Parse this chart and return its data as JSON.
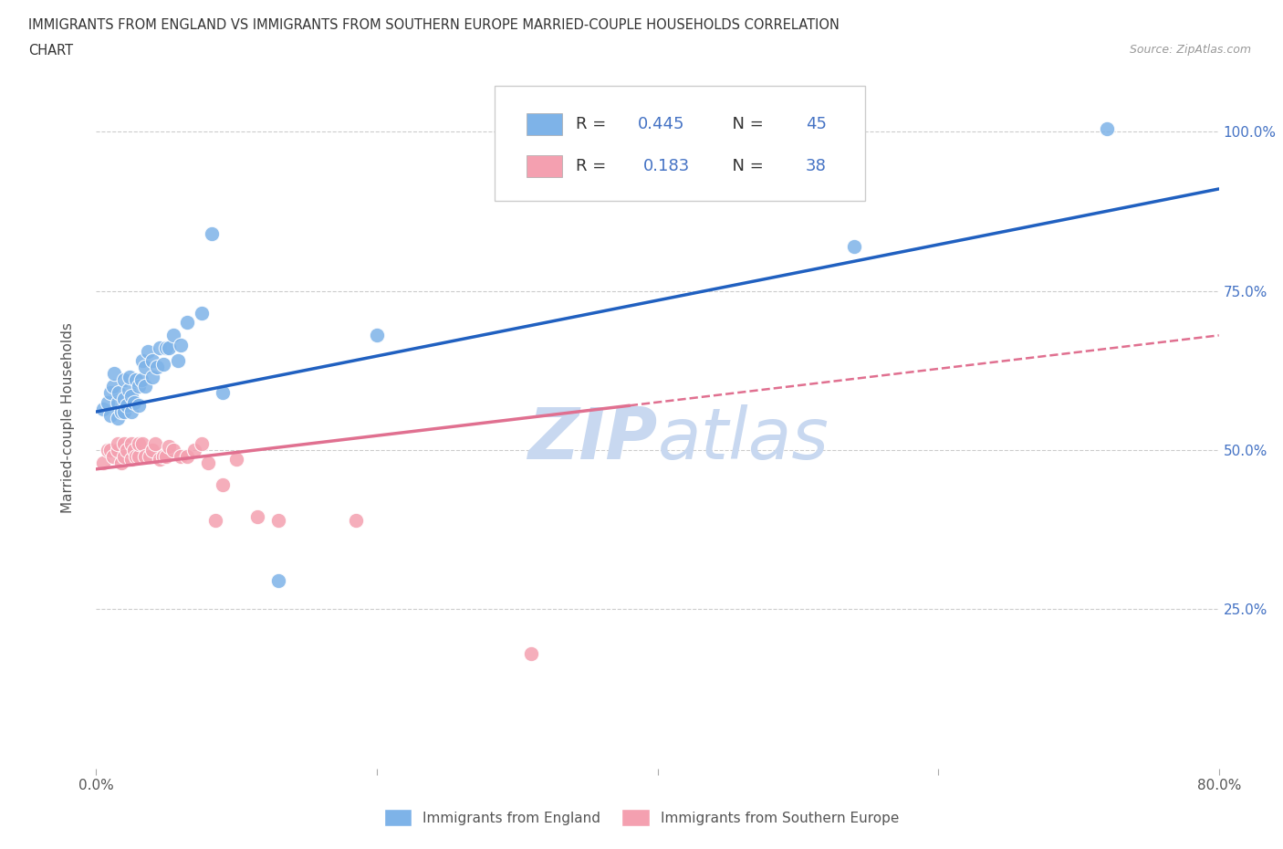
{
  "title_line1": "IMMIGRANTS FROM ENGLAND VS IMMIGRANTS FROM SOUTHERN EUROPE MARRIED-COUPLE HOUSEHOLDS CORRELATION",
  "title_line2": "CHART",
  "source_text": "Source: ZipAtlas.com",
  "ylabel": "Married-couple Households",
  "xmin": 0.0,
  "xmax": 0.8,
  "ymin": 0.0,
  "ymax": 1.1,
  "R_england": 0.445,
  "N_england": 45,
  "R_southern": 0.183,
  "N_southern": 38,
  "color_england": "#7EB3E8",
  "color_southern": "#F4A0B0",
  "trendline_england_color": "#2060C0",
  "trendline_southern_color": "#E07090",
  "legend_label_england": "Immigrants from England",
  "legend_label_southern": "Immigrants from Southern Europe",
  "england_x": [
    0.005,
    0.008,
    0.01,
    0.01,
    0.012,
    0.013,
    0.015,
    0.015,
    0.016,
    0.018,
    0.02,
    0.02,
    0.02,
    0.022,
    0.023,
    0.024,
    0.025,
    0.025,
    0.027,
    0.028,
    0.03,
    0.03,
    0.032,
    0.033,
    0.035,
    0.035,
    0.037,
    0.04,
    0.04,
    0.043,
    0.045,
    0.048,
    0.05,
    0.052,
    0.055,
    0.058,
    0.06,
    0.065,
    0.075,
    0.082,
    0.09,
    0.13,
    0.2,
    0.54,
    0.72
  ],
  "england_y": [
    0.565,
    0.575,
    0.555,
    0.59,
    0.6,
    0.62,
    0.55,
    0.575,
    0.59,
    0.56,
    0.56,
    0.58,
    0.61,
    0.57,
    0.595,
    0.615,
    0.56,
    0.585,
    0.575,
    0.61,
    0.57,
    0.6,
    0.61,
    0.64,
    0.6,
    0.63,
    0.655,
    0.615,
    0.64,
    0.63,
    0.66,
    0.635,
    0.66,
    0.66,
    0.68,
    0.64,
    0.665,
    0.7,
    0.715,
    0.84,
    0.59,
    0.295,
    0.68,
    0.82,
    1.005
  ],
  "southern_x": [
    0.005,
    0.008,
    0.01,
    0.012,
    0.015,
    0.015,
    0.018,
    0.02,
    0.02,
    0.022,
    0.025,
    0.025,
    0.027,
    0.028,
    0.03,
    0.03,
    0.033,
    0.035,
    0.038,
    0.04,
    0.042,
    0.045,
    0.048,
    0.05,
    0.052,
    0.055,
    0.06,
    0.065,
    0.07,
    0.075,
    0.08,
    0.085,
    0.09,
    0.1,
    0.115,
    0.13,
    0.185,
    0.31
  ],
  "southern_y": [
    0.48,
    0.5,
    0.5,
    0.49,
    0.5,
    0.51,
    0.48,
    0.51,
    0.49,
    0.5,
    0.485,
    0.51,
    0.5,
    0.49,
    0.49,
    0.51,
    0.51,
    0.49,
    0.49,
    0.5,
    0.51,
    0.485,
    0.49,
    0.49,
    0.505,
    0.5,
    0.49,
    0.49,
    0.5,
    0.51,
    0.48,
    0.39,
    0.445,
    0.485,
    0.395,
    0.39,
    0.39,
    0.18
  ],
  "trendline_eng_x0": 0.0,
  "trendline_eng_y0": 0.56,
  "trendline_eng_x1": 0.8,
  "trendline_eng_y1": 0.91,
  "trendline_sou_x0": 0.0,
  "trendline_sou_y0": 0.47,
  "trendline_sou_x1": 0.8,
  "trendline_sou_y1": 0.68,
  "trendline_sou_solid_end": 0.38,
  "watermark_color": "#C8D8F0",
  "background_color": "#ffffff",
  "grid_color": "#CCCCCC",
  "title_color": "#333333",
  "axis_label_color": "#555555",
  "right_axis_color": "#4472C4",
  "source_color": "#999999"
}
